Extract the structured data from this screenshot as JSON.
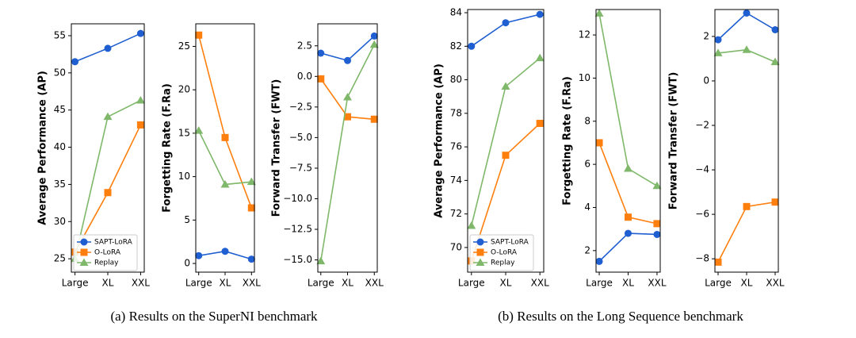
{
  "chart_data": [
    {
      "type": "line",
      "ylabel": "Average Performance (AP)",
      "categories": [
        "Large",
        "XL",
        "XXL"
      ],
      "ylim": [
        23.2,
        56.6
      ],
      "yticks": [
        25,
        30,
        35,
        40,
        45,
        50,
        55
      ],
      "legend": "lower left",
      "series": [
        {
          "name": "SAPT-LoRA",
          "color": "#1f5fd1",
          "marker": "circle",
          "values": [
            51.5,
            53.3,
            55.3
          ]
        },
        {
          "name": "O-LoRA",
          "color": "#ff7f0e",
          "marker": "square",
          "values": [
            25.9,
            33.9,
            43.0
          ]
        },
        {
          "name": "Replay",
          "color": "#7fb86a",
          "marker": "triangle",
          "values": [
            25.0,
            44.1,
            46.3
          ]
        }
      ]
    },
    {
      "type": "line",
      "ylabel": "Forgetting Rate (F.Ra)",
      "categories": [
        "Large",
        "XL",
        "XXL"
      ],
      "ylim": [
        -1.0,
        27.6
      ],
      "yticks": [
        0,
        5,
        10,
        15,
        20,
        25
      ],
      "series": [
        {
          "color": "#1f5fd1",
          "marker": "circle",
          "values": [
            0.9,
            1.4,
            0.5
          ]
        },
        {
          "color": "#ff7f0e",
          "marker": "square",
          "values": [
            26.3,
            14.5,
            6.4
          ]
        },
        {
          "color": "#7fb86a",
          "marker": "triangle",
          "values": [
            15.3,
            9.1,
            9.4
          ]
        }
      ]
    },
    {
      "type": "line",
      "ylabel": "Forward Transfer (FWT)",
      "categories": [
        "Large",
        "XL",
        "XXL"
      ],
      "ylim": [
        -16.0,
        4.3
      ],
      "yticks": [
        {
          "value": 2.5,
          "label": "2.5"
        },
        {
          "value": 0,
          "label": "0.0"
        },
        {
          "value": -2.5,
          "label": "−2.5"
        },
        {
          "value": -5,
          "label": "−5.0"
        },
        {
          "value": -7.5,
          "label": "−7.5"
        },
        {
          "value": -10,
          "label": "−10.0"
        },
        {
          "value": -12.5,
          "label": "−12.5"
        },
        {
          "value": -15,
          "label": "−15.0"
        }
      ],
      "series": [
        {
          "color": "#1f5fd1",
          "marker": "circle",
          "values": [
            1.9,
            1.3,
            3.3
          ]
        },
        {
          "color": "#ff7f0e",
          "marker": "square",
          "values": [
            -0.2,
            -3.3,
            -3.5
          ]
        },
        {
          "color": "#7fb86a",
          "marker": "triangle",
          "values": [
            -15.1,
            -1.7,
            2.6
          ]
        }
      ]
    },
    {
      "type": "line",
      "ylabel": "Average Performance (AP)",
      "categories": [
        "Large",
        "XL",
        "XXL"
      ],
      "ylim": [
        68.53,
        84.19
      ],
      "yticks": [
        70,
        72,
        74,
        76,
        78,
        80,
        82,
        84
      ],
      "legend": "lower left",
      "series": [
        {
          "name": "SAPT-LoRA",
          "color": "#1f5fd1",
          "marker": "circle",
          "values": [
            82.0,
            83.4,
            83.9
          ]
        },
        {
          "name": "O-LoRA",
          "color": "#ff7f0e",
          "marker": "square",
          "values": [
            69.2,
            75.5,
            77.4
          ]
        },
        {
          "name": "Replay",
          "color": "#7fb86a",
          "marker": "triangle",
          "values": [
            71.3,
            79.6,
            81.3
          ]
        }
      ]
    },
    {
      "type": "line",
      "ylabel": "Forgetting Rate (F.Ra)",
      "categories": [
        "Large",
        "XL",
        "XXL"
      ],
      "ylim": [
        1.0,
        13.18
      ],
      "yticks": [
        2,
        4,
        6,
        8,
        10,
        12
      ],
      "series": [
        {
          "color": "#1f5fd1",
          "marker": "circle",
          "values": [
            1.5,
            2.8,
            2.75
          ]
        },
        {
          "color": "#ff7f0e",
          "marker": "square",
          "values": [
            7.0,
            3.55,
            3.25
          ]
        },
        {
          "color": "#7fb86a",
          "marker": "triangle",
          "values": [
            13.0,
            5.8,
            5.0
          ]
        }
      ]
    },
    {
      "type": "line",
      "ylabel": "Forward Transfer (FWT)",
      "categories": [
        "Large",
        "XL",
        "XXL"
      ],
      "ylim": [
        -8.6,
        3.21
      ],
      "yticks": [
        {
          "value": 2,
          "label": "2"
        },
        {
          "value": 0,
          "label": "0"
        },
        {
          "value": -2,
          "label": "−2"
        },
        {
          "value": -4,
          "label": "−4"
        },
        {
          "value": -6,
          "label": "−6"
        },
        {
          "value": -8,
          "label": "−8"
        }
      ],
      "series": [
        {
          "color": "#1f5fd1",
          "marker": "circle",
          "values": [
            1.85,
            3.05,
            2.3
          ]
        },
        {
          "color": "#ff7f0e",
          "marker": "square",
          "values": [
            -8.15,
            -5.65,
            -5.45
          ]
        },
        {
          "color": "#7fb86a",
          "marker": "triangle",
          "values": [
            1.25,
            1.4,
            0.85
          ]
        }
      ]
    }
  ],
  "captions": [
    "(a)  Results on the SuperNI benchmark",
    "(b)  Results on the Long Sequence benchmark"
  ]
}
